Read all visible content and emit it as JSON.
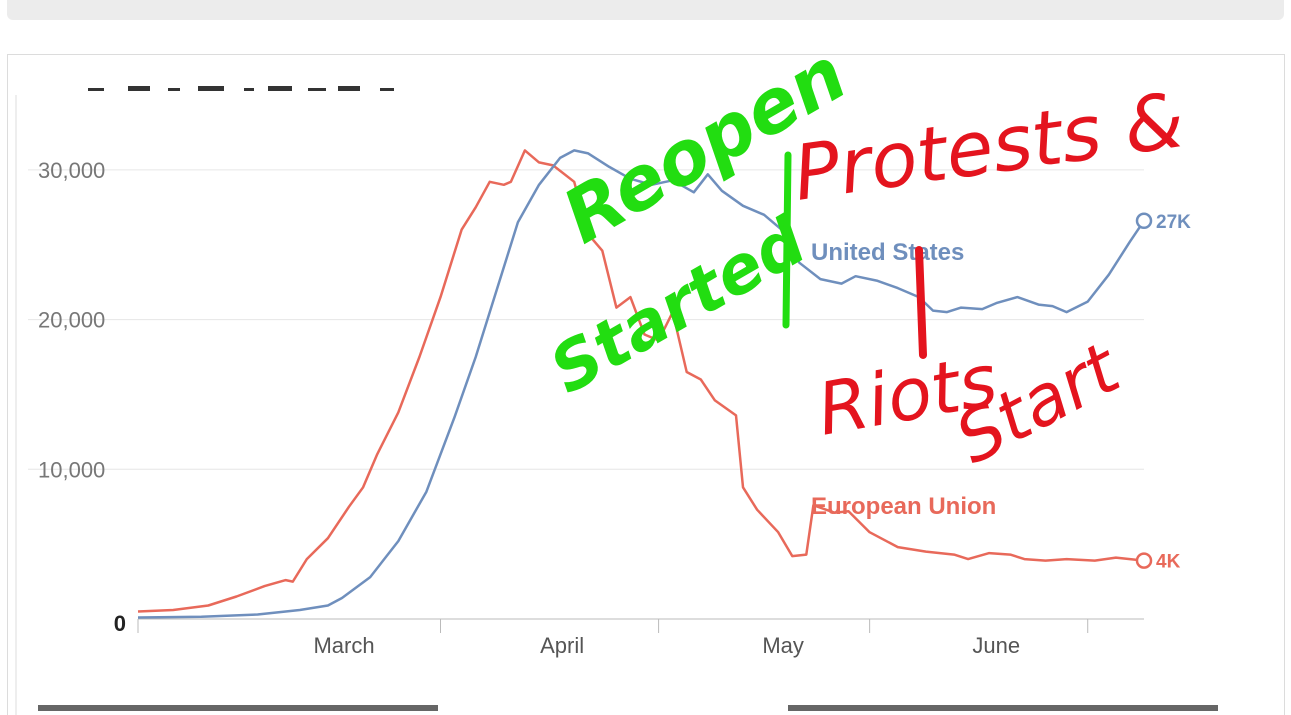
{
  "chart_data": {
    "type": "line",
    "title": "",
    "xlabel": "",
    "ylabel": "",
    "ylim": [
      0,
      35000
    ],
    "y_ticks": [
      {
        "value": 0,
        "label": "0"
      },
      {
        "value": 10000,
        "label": "10,000"
      },
      {
        "value": 20000,
        "label": "20,000"
      },
      {
        "value": 30000,
        "label": "30,000"
      }
    ],
    "x_ticks": [
      {
        "date": "2020-03-01",
        "label": "March"
      },
      {
        "date": "2020-04-01",
        "label": "April"
      },
      {
        "date": "2020-05-01",
        "label": "May"
      },
      {
        "date": "2020-06-01",
        "label": "June"
      }
    ],
    "grid": true,
    "legend": "inline labels",
    "series": [
      {
        "name": "United States",
        "color": "#6f8fbd",
        "end_label": "27K",
        "points": [
          [
            "2020-02-01",
            100
          ],
          [
            "2020-02-10",
            150
          ],
          [
            "2020-02-18",
            300
          ],
          [
            "2020-02-24",
            600
          ],
          [
            "2020-02-28",
            900
          ],
          [
            "2020-03-01",
            1400
          ],
          [
            "2020-03-05",
            2800
          ],
          [
            "2020-03-09",
            5200
          ],
          [
            "2020-03-13",
            8500
          ],
          [
            "2020-03-17",
            13500
          ],
          [
            "2020-03-20",
            17500
          ],
          [
            "2020-03-23",
            22000
          ],
          [
            "2020-03-26",
            26500
          ],
          [
            "2020-03-29",
            29000
          ],
          [
            "2020-04-01",
            30800
          ],
          [
            "2020-04-03",
            31300
          ],
          [
            "2020-04-05",
            31100
          ],
          [
            "2020-04-08",
            30200
          ],
          [
            "2020-04-11",
            29400
          ],
          [
            "2020-04-14",
            29000
          ],
          [
            "2020-04-17",
            29300
          ],
          [
            "2020-04-20",
            28500
          ],
          [
            "2020-04-22",
            29700
          ],
          [
            "2020-04-24",
            28600
          ],
          [
            "2020-04-27",
            27600
          ],
          [
            "2020-04-30",
            27000
          ],
          [
            "2020-05-03",
            25800
          ],
          [
            "2020-05-05",
            23800
          ],
          [
            "2020-05-08",
            22700
          ],
          [
            "2020-05-11",
            22400
          ],
          [
            "2020-05-13",
            22900
          ],
          [
            "2020-05-16",
            22600
          ],
          [
            "2020-05-19",
            22100
          ],
          [
            "2020-05-22",
            21500
          ],
          [
            "2020-05-24",
            20600
          ],
          [
            "2020-05-26",
            20500
          ],
          [
            "2020-05-28",
            20800
          ],
          [
            "2020-05-31",
            20700
          ],
          [
            "2020-06-02",
            21100
          ],
          [
            "2020-06-05",
            21500
          ],
          [
            "2020-06-08",
            21000
          ],
          [
            "2020-06-10",
            20900
          ],
          [
            "2020-06-12",
            20500
          ],
          [
            "2020-06-15",
            21200
          ],
          [
            "2020-06-18",
            23000
          ],
          [
            "2020-06-21",
            25200
          ],
          [
            "2020-06-23",
            26600
          ]
        ]
      },
      {
        "name": "European Union",
        "color": "#e8695a",
        "end_label": "4K",
        "points": [
          [
            "2020-02-01",
            500
          ],
          [
            "2020-02-06",
            600
          ],
          [
            "2020-02-11",
            900
          ],
          [
            "2020-02-15",
            1500
          ],
          [
            "2020-02-19",
            2200
          ],
          [
            "2020-02-22",
            2600
          ],
          [
            "2020-02-23",
            2500
          ],
          [
            "2020-02-25",
            4000
          ],
          [
            "2020-02-28",
            5400
          ],
          [
            "2020-03-02",
            7500
          ],
          [
            "2020-03-04",
            8800
          ],
          [
            "2020-03-06",
            11000
          ],
          [
            "2020-03-09",
            13800
          ],
          [
            "2020-03-12",
            17500
          ],
          [
            "2020-03-15",
            21500
          ],
          [
            "2020-03-18",
            26000
          ],
          [
            "2020-03-20",
            27500
          ],
          [
            "2020-03-22",
            29200
          ],
          [
            "2020-03-24",
            29000
          ],
          [
            "2020-03-25",
            29200
          ],
          [
            "2020-03-27",
            31300
          ],
          [
            "2020-03-29",
            30500
          ],
          [
            "2020-03-31",
            30300
          ],
          [
            "2020-04-03",
            29200
          ],
          [
            "2020-04-05",
            25700
          ],
          [
            "2020-04-07",
            24600
          ],
          [
            "2020-04-09",
            20800
          ],
          [
            "2020-04-11",
            21500
          ],
          [
            "2020-04-13",
            19000
          ],
          [
            "2020-04-15",
            18600
          ],
          [
            "2020-04-17",
            20500
          ],
          [
            "2020-04-19",
            16500
          ],
          [
            "2020-04-21",
            16000
          ],
          [
            "2020-04-23",
            14600
          ],
          [
            "2020-04-26",
            13600
          ],
          [
            "2020-04-27",
            8800
          ],
          [
            "2020-04-29",
            7300
          ],
          [
            "2020-05-02",
            5800
          ],
          [
            "2020-05-04",
            4200
          ],
          [
            "2020-05-06",
            4300
          ],
          [
            "2020-05-07",
            7600
          ],
          [
            "2020-05-10",
            7100
          ],
          [
            "2020-05-12",
            7200
          ],
          [
            "2020-05-15",
            5800
          ],
          [
            "2020-05-19",
            4800
          ],
          [
            "2020-05-23",
            4500
          ],
          [
            "2020-05-27",
            4300
          ],
          [
            "2020-05-29",
            4000
          ],
          [
            "2020-06-01",
            4400
          ],
          [
            "2020-06-04",
            4300
          ],
          [
            "2020-06-06",
            4000
          ],
          [
            "2020-06-09",
            3900
          ],
          [
            "2020-06-12",
            4000
          ],
          [
            "2020-06-16",
            3900
          ],
          [
            "2020-06-19",
            4100
          ],
          [
            "2020-06-23",
            3900
          ]
        ]
      }
    ]
  },
  "annotations": {
    "green": {
      "line1": "Reopen",
      "line2": "Started",
      "color": "#22dd11"
    },
    "red": {
      "line1": "Protests &",
      "line2": "Riots",
      "line3": "Start",
      "color": "#e4141e"
    }
  }
}
